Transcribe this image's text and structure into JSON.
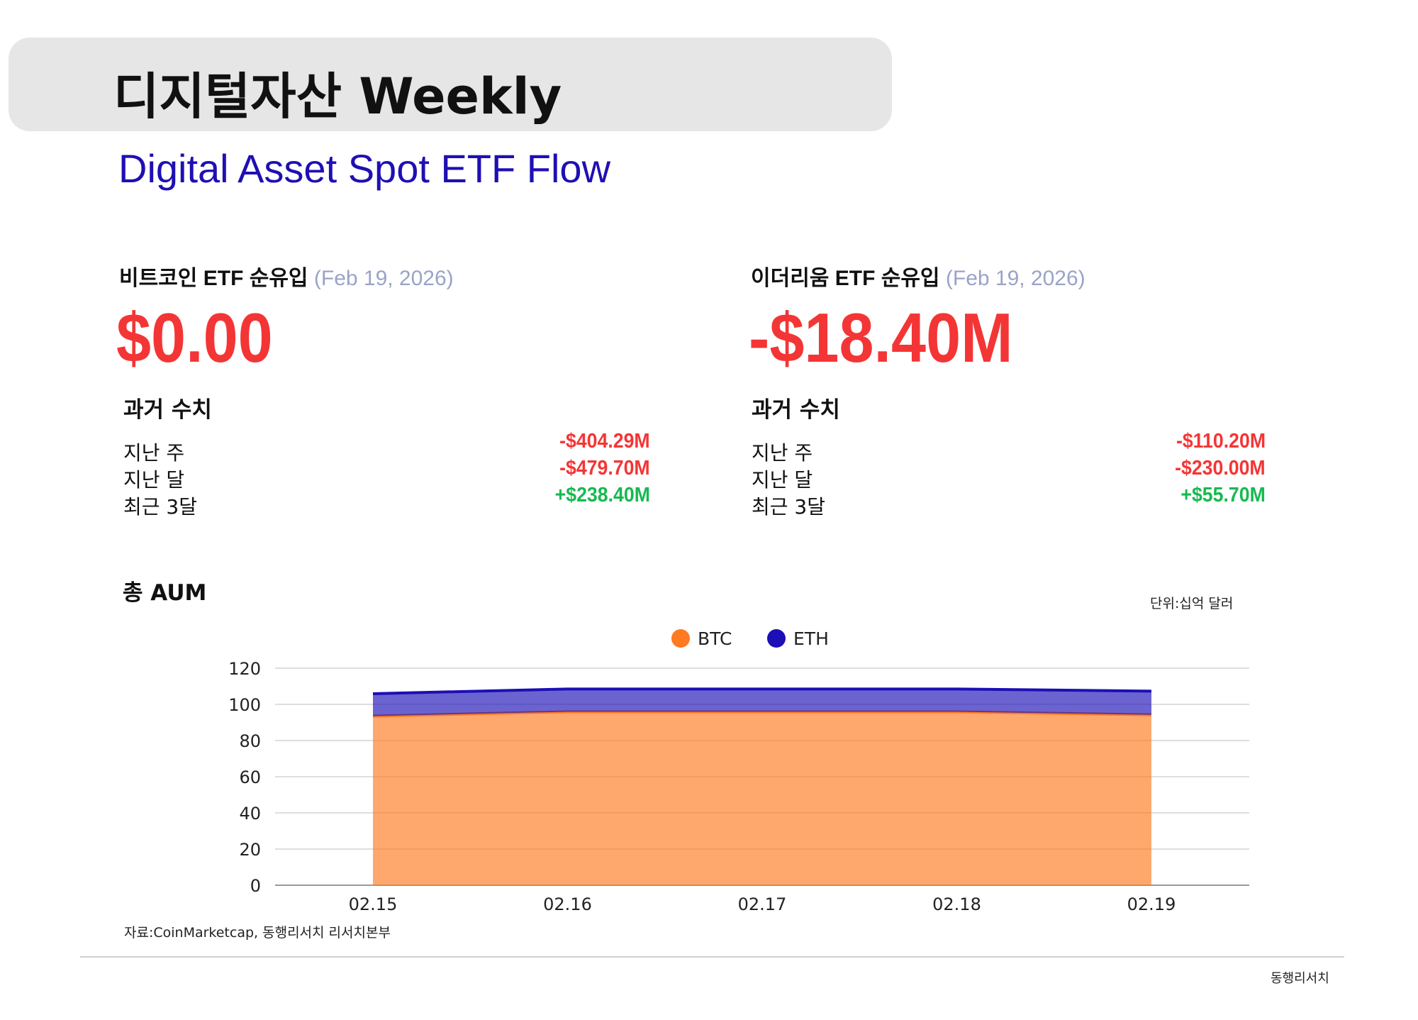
{
  "header": {
    "title": "디지털자산 Weekly",
    "subtitle": "Digital Asset Spot ETF Flow"
  },
  "btc": {
    "heading": "비트코인 ETF 순유입",
    "date": "(Feb 19, 2026)",
    "value": "$0.00",
    "past_label": "과거 수치",
    "rows": [
      {
        "label": "지난 주",
        "value": "-$404.29M",
        "sign": "neg"
      },
      {
        "label": "지난 달",
        "value": "-$479.70M",
        "sign": "neg"
      },
      {
        "label": "최근 3달",
        "value": "+$238.40M",
        "sign": "pos"
      }
    ]
  },
  "eth": {
    "heading": "이더리움 ETF 순유입",
    "date": "(Feb 19, 2026)",
    "value": "-$18.40M",
    "past_label": "과거 수치",
    "rows": [
      {
        "label": "지난 주",
        "value": "-$110.20M",
        "sign": "neg"
      },
      {
        "label": "지난 달",
        "value": "-$230.00M",
        "sign": "neg"
      },
      {
        "label": "최근 3달",
        "value": "+$55.70M",
        "sign": "pos"
      }
    ]
  },
  "colors": {
    "negative": "#f43535",
    "positive": "#17b950",
    "btc": "#ff7a21",
    "eth": "#1b0fb5"
  },
  "chart_data": {
    "type": "area",
    "stacked": true,
    "title": "총 AUM",
    "unit": "단위:십억 달러",
    "categories": [
      "02.15",
      "02.16",
      "02.17",
      "02.18",
      "02.19"
    ],
    "series": [
      {
        "name": "BTC",
        "values": [
          93.5,
          95.9,
          95.9,
          95.9,
          94.2
        ],
        "color": "#ff7a21"
      },
      {
        "name": "ETH",
        "values": [
          12.4,
          12.6,
          12.6,
          12.6,
          13.1
        ],
        "color": "#1b0fb5"
      }
    ],
    "ylim": [
      0,
      120
    ],
    "yticks": [
      0,
      20,
      40,
      60,
      80,
      100,
      120
    ],
    "grid": true,
    "legend": "top-center"
  },
  "footer": {
    "source": "자료:CoinMarketcap, 동행리서치 리서치본부",
    "brand": "동행리서치"
  }
}
